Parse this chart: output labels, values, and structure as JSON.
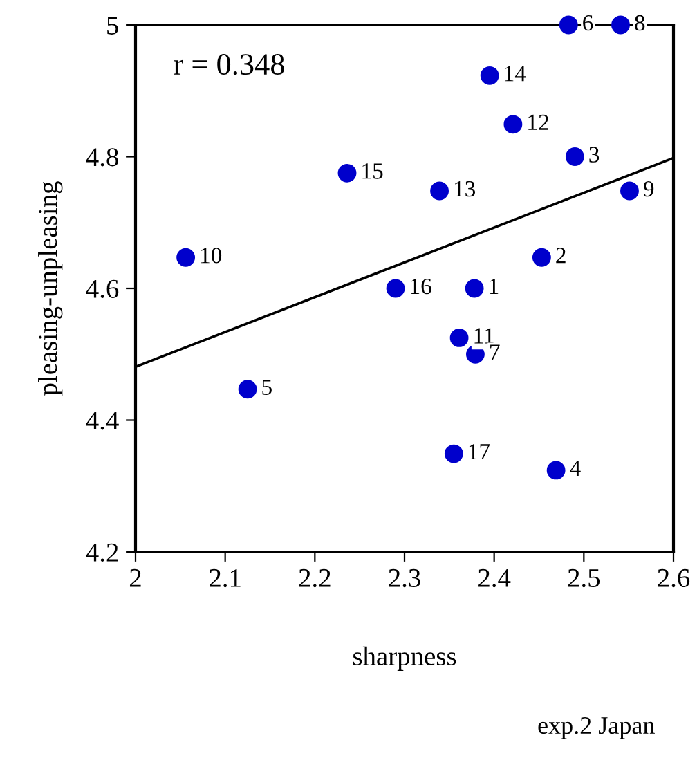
{
  "chart_data": {
    "type": "scatter",
    "xlabel": "sharpness",
    "ylabel": "pleasing-unpleasing",
    "xlim": [
      2,
      2.6
    ],
    "ylim": [
      4.2,
      5
    ],
    "xticks": [
      2,
      2.1,
      2.2,
      2.3,
      2.4,
      2.5,
      2.6
    ],
    "yticks": [
      4.2,
      4.4,
      4.6,
      4.8,
      5
    ],
    "grid": false,
    "legend": false,
    "series": [
      {
        "marker": "circle",
        "color": "#0000cc",
        "x": [
          2.378,
          2.453,
          2.49,
          2.469,
          2.125,
          2.483,
          2.379,
          2.541,
          2.551,
          2.056,
          2.361,
          2.421,
          2.339,
          2.395,
          2.236,
          2.29,
          2.355
        ],
        "values": [
          4.6,
          4.647,
          4.8,
          4.324,
          4.447,
          5.0,
          4.5,
          5.0,
          4.748,
          4.647,
          4.525,
          4.849,
          4.748,
          4.923,
          4.775,
          4.6,
          4.349
        ]
      },
      {
        "type": "line",
        "color": "#000000",
        "x": [
          2,
          2.6
        ],
        "values": [
          4.481,
          4.798
        ]
      }
    ],
    "annotations": [
      "r = 0.348",
      "exp.2 Japan",
      {
        "text": "1",
        "x": 2.378,
        "y": 4.6
      },
      {
        "text": "2",
        "x": 2.453,
        "y": 4.647
      },
      {
        "text": "3",
        "x": 2.49,
        "y": 4.8
      },
      {
        "text": "4",
        "x": 2.469,
        "y": 4.324
      },
      {
        "text": "5",
        "x": 2.125,
        "y": 4.447
      },
      {
        "text": "6",
        "x": 2.483,
        "y": 5.0
      },
      {
        "text": "7",
        "x": 2.379,
        "y": 4.5
      },
      {
        "text": "8",
        "x": 2.541,
        "y": 5.0
      },
      {
        "text": "9",
        "x": 2.551,
        "y": 4.748
      },
      {
        "text": "10",
        "x": 2.056,
        "y": 4.647
      },
      {
        "text": "11",
        "x": 2.361,
        "y": 4.525
      },
      {
        "text": "12",
        "x": 2.421,
        "y": 4.849
      },
      {
        "text": "13",
        "x": 2.339,
        "y": 4.748
      },
      {
        "text": "14",
        "x": 2.395,
        "y": 4.923
      },
      {
        "text": "15",
        "x": 2.236,
        "y": 4.775
      },
      {
        "text": "16",
        "x": 2.29,
        "y": 4.6
      },
      {
        "text": "17",
        "x": 2.355,
        "y": 4.349
      }
    ]
  }
}
